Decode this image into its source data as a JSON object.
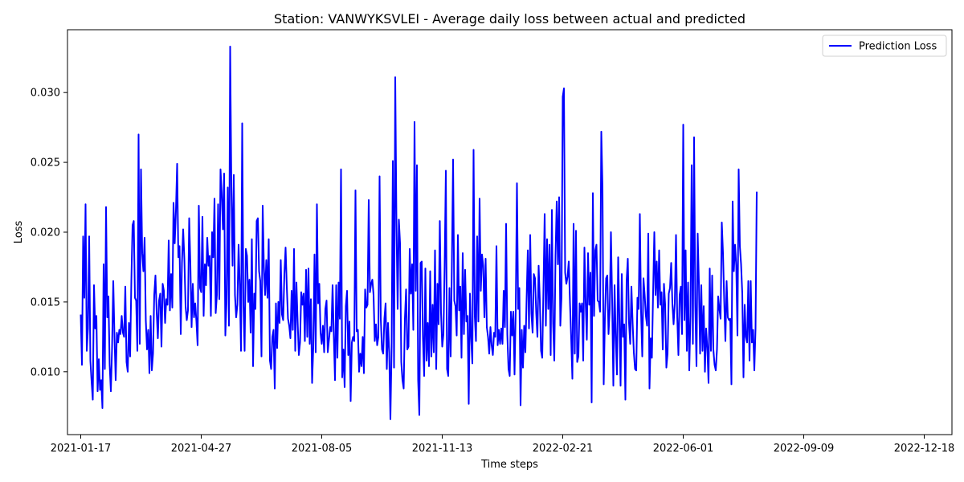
{
  "chart_data": {
    "type": "line",
    "title": "Station: VANWYKSVLEI - Average daily loss between actual and predicted",
    "xlabel": "Time steps",
    "ylabel": "Loss",
    "x_start": "2021-01-17",
    "x_end": "2022-12-31",
    "xlim": [
      "2021-01-06",
      "2023-01-10"
    ],
    "ylim": [
      0.0055,
      0.0345
    ],
    "x_ticks": [
      "2021-01-17",
      "2021-04-27",
      "2021-08-05",
      "2021-11-13",
      "2022-02-21",
      "2022-06-01",
      "2022-09-09",
      "2022-12-18"
    ],
    "y_ticks": [
      0.01,
      0.015,
      0.02,
      0.025,
      0.03
    ],
    "y_tick_labels": [
      "0.010",
      "0.015",
      "0.020",
      "0.025",
      "0.030"
    ],
    "grid": false,
    "legend": {
      "placement": "top-right",
      "entries": [
        "Prediction Loss"
      ]
    },
    "series": [
      {
        "name": "Prediction Loss",
        "color": "#0000ff",
        "values": [
          0.0141,
          0.0105,
          0.0197,
          0.0153,
          0.022,
          0.0115,
          0.0131,
          0.0197,
          0.0108,
          0.0093,
          0.008,
          0.0162,
          0.0131,
          0.014,
          0.0086,
          0.0109,
          0.0087,
          0.0094,
          0.0074,
          0.0177,
          0.0102,
          0.0218,
          0.0139,
          0.0154,
          0.0105,
          0.0086,
          0.0117,
          0.0165,
          0.0125,
          0.0094,
          0.0128,
          0.0121,
          0.013,
          0.0127,
          0.014,
          0.0128,
          0.0125,
          0.0161,
          0.0107,
          0.01,
          0.0135,
          0.0111,
          0.0165,
          0.0205,
          0.0208,
          0.0153,
          0.0151,
          0.0115,
          0.027,
          0.012,
          0.0245,
          0.0185,
          0.0172,
          0.0196,
          0.0137,
          0.0116,
          0.013,
          0.0099,
          0.014,
          0.0101,
          0.0113,
          0.0155,
          0.0169,
          0.0143,
          0.0124,
          0.0151,
          0.0156,
          0.0118,
          0.0163,
          0.0158,
          0.0135,
          0.0152,
          0.0148,
          0.0194,
          0.0144,
          0.017,
          0.0146,
          0.0221,
          0.0192,
          0.0215,
          0.0249,
          0.0182,
          0.019,
          0.0127,
          0.0178,
          0.0202,
          0.0181,
          0.0147,
          0.0137,
          0.0144,
          0.021,
          0.0177,
          0.0132,
          0.0163,
          0.0139,
          0.0149,
          0.0136,
          0.0119,
          0.0219,
          0.016,
          0.0157,
          0.0211,
          0.014,
          0.0177,
          0.0162,
          0.0196,
          0.0176,
          0.0183,
          0.014,
          0.02,
          0.0182,
          0.0224,
          0.0142,
          0.0155,
          0.022,
          0.0152,
          0.0245,
          0.0228,
          0.0202,
          0.0242,
          0.0126,
          0.015,
          0.0232,
          0.0133,
          0.0333,
          0.0233,
          0.0176,
          0.0241,
          0.0155,
          0.0139,
          0.0148,
          0.0191,
          0.0161,
          0.0115,
          0.0278,
          0.0148,
          0.0115,
          0.0188,
          0.0183,
          0.015,
          0.0166,
          0.0128,
          0.0195,
          0.0104,
          0.0156,
          0.0145,
          0.0208,
          0.021,
          0.0172,
          0.0165,
          0.0111,
          0.0219,
          0.0175,
          0.0155,
          0.018,
          0.0153,
          0.0195,
          0.0108,
          0.0102,
          0.0125,
          0.013,
          0.0088,
          0.0149,
          0.0117,
          0.015,
          0.0135,
          0.018,
          0.0141,
          0.0137,
          0.017,
          0.0189,
          0.0161,
          0.0138,
          0.0133,
          0.0124,
          0.0158,
          0.013,
          0.0188,
          0.0115,
          0.0164,
          0.0136,
          0.0112,
          0.0121,
          0.0157,
          0.0148,
          0.0156,
          0.0122,
          0.0173,
          0.0125,
          0.0174,
          0.012,
          0.0152,
          0.0092,
          0.0118,
          0.0184,
          0.0114,
          0.022,
          0.0149,
          0.0163,
          0.0128,
          0.012,
          0.0133,
          0.0114,
          0.0145,
          0.0151,
          0.0114,
          0.0123,
          0.0132,
          0.0129,
          0.0162,
          0.0126,
          0.0094,
          0.0162,
          0.011,
          0.0164,
          0.0138,
          0.0245,
          0.0096,
          0.0116,
          0.0089,
          0.0147,
          0.0158,
          0.0112,
          0.0136,
          0.0079,
          0.0121,
          0.0125,
          0.0122,
          0.023,
          0.0129,
          0.013,
          0.01,
          0.0113,
          0.0104,
          0.0125,
          0.0099,
          0.0159,
          0.0146,
          0.0148,
          0.0223,
          0.0157,
          0.0163,
          0.0166,
          0.0155,
          0.0122,
          0.0134,
          0.0119,
          0.0125,
          0.024,
          0.0138,
          0.0116,
          0.0113,
          0.0138,
          0.0149,
          0.0102,
          0.0135,
          0.0114,
          0.0066,
          0.0118,
          0.0251,
          0.0103,
          0.0311,
          0.0207,
          0.0145,
          0.0209,
          0.0192,
          0.0107,
          0.0094,
          0.0088,
          0.0138,
          0.0159,
          0.0116,
          0.0118,
          0.0188,
          0.0156,
          0.0177,
          0.013,
          0.0279,
          0.0158,
          0.0248,
          0.0094,
          0.0069,
          0.0178,
          0.0179,
          0.0124,
          0.0097,
          0.0174,
          0.0108,
          0.0135,
          0.0104,
          0.0172,
          0.0111,
          0.0148,
          0.0114,
          0.0187,
          0.0102,
          0.0163,
          0.0134,
          0.0208,
          0.0142,
          0.0118,
          0.0127,
          0.0176,
          0.0244,
          0.0102,
          0.0097,
          0.016,
          0.0111,
          0.0176,
          0.0252,
          0.0151,
          0.0147,
          0.0126,
          0.0198,
          0.0144,
          0.0161,
          0.011,
          0.0185,
          0.0127,
          0.0173,
          0.0136,
          0.014,
          0.0077,
          0.0156,
          0.0124,
          0.0106,
          0.0259,
          0.014,
          0.0122,
          0.0197,
          0.0136,
          0.0224,
          0.0158,
          0.0184,
          0.0176,
          0.0139,
          0.0181,
          0.0132,
          0.0125,
          0.0113,
          0.0132,
          0.0119,
          0.0112,
          0.0128,
          0.0125,
          0.019,
          0.0119,
          0.013,
          0.012,
          0.0131,
          0.012,
          0.0158,
          0.0132,
          0.0206,
          0.0127,
          0.0102,
          0.0097,
          0.0143,
          0.0126,
          0.0143,
          0.0098,
          0.0145,
          0.0235,
          0.0145,
          0.016,
          0.0076,
          0.013,
          0.0103,
          0.0133,
          0.0114,
          0.0152,
          0.0187,
          0.0131,
          0.0198,
          0.0142,
          0.0128,
          0.017,
          0.0167,
          0.0142,
          0.0125,
          0.0176,
          0.0151,
          0.0115,
          0.011,
          0.016,
          0.0213,
          0.0133,
          0.0195,
          0.0145,
          0.0191,
          0.0112,
          0.0216,
          0.0135,
          0.0108,
          0.0183,
          0.0222,
          0.0177,
          0.0225,
          0.0133,
          0.0154,
          0.0297,
          0.0303,
          0.0171,
          0.0163,
          0.0168,
          0.0179,
          0.015,
          0.0124,
          0.0095,
          0.0206,
          0.0113,
          0.0201,
          0.0107,
          0.0111,
          0.0149,
          0.0143,
          0.0149,
          0.0108,
          0.0189,
          0.015,
          0.0123,
          0.0185,
          0.0148,
          0.0171,
          0.0078,
          0.0228,
          0.014,
          0.0187,
          0.0191,
          0.0151,
          0.015,
          0.0143,
          0.0272,
          0.0232,
          0.0091,
          0.0138,
          0.0167,
          0.0169,
          0.0127,
          0.0145,
          0.02,
          0.0151,
          0.009,
          0.0162,
          0.0124,
          0.0098,
          0.0182,
          0.0139,
          0.009,
          0.017,
          0.0125,
          0.0134,
          0.008,
          0.0165,
          0.0181,
          0.0135,
          0.012,
          0.0161,
          0.0135,
          0.0114,
          0.0102,
          0.0101,
          0.0153,
          0.0145,
          0.0213,
          0.0143,
          0.0111,
          0.0167,
          0.0155,
          0.014,
          0.0133,
          0.0199,
          0.0088,
          0.0124,
          0.011,
          0.0157,
          0.02,
          0.0155,
          0.0179,
          0.0146,
          0.0187,
          0.0148,
          0.0157,
          0.0116,
          0.0163,
          0.0148,
          0.0103,
          0.0113,
          0.0156,
          0.016,
          0.0178,
          0.0149,
          0.0134,
          0.0149,
          0.0198,
          0.014,
          0.0112,
          0.0155,
          0.0161,
          0.0127,
          0.0277,
          0.0137,
          0.0187,
          0.0115,
          0.0164,
          0.0101,
          0.014,
          0.0248,
          0.012,
          0.0268,
          0.0148,
          0.0104,
          0.0199,
          0.0164,
          0.0113,
          0.0162,
          0.0115,
          0.0147,
          0.01,
          0.0131,
          0.0117,
          0.0092,
          0.0174,
          0.0115,
          0.0169,
          0.0116,
          0.0105,
          0.0101,
          0.0116,
          0.0154,
          0.0145,
          0.0138,
          0.0207,
          0.0185,
          0.0151,
          0.0122,
          0.0165,
          0.0139,
          0.0137,
          0.0138,
          0.0091,
          0.0222,
          0.0172,
          0.0191,
          0.0176,
          0.0126,
          0.0245,
          0.019,
          0.0177,
          0.0156,
          0.0096,
          0.0148,
          0.0125,
          0.0121,
          0.0165,
          0.0108,
          0.0165,
          0.0121,
          0.013,
          0.0101,
          0.0131,
          0.0229
        ]
      }
    ]
  }
}
